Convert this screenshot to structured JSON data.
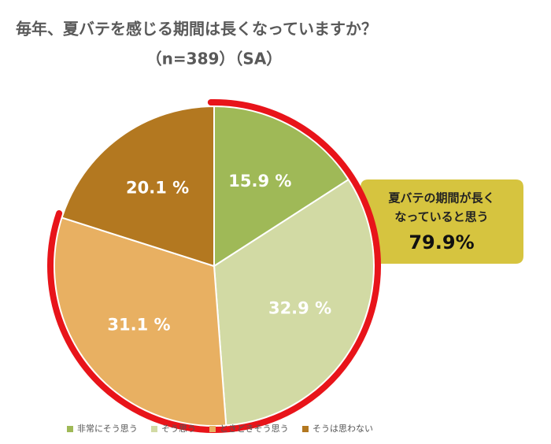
{
  "chart_data": {
    "type": "pie",
    "title": "毎年、夏バテを感じる期間は長くなっていますか？",
    "subtitle": "（n=389）（SA）",
    "categories": [
      "非常にそう思う",
      "そう思う",
      "ときどきそう思う",
      "そうは思わない"
    ],
    "values": [
      15.9,
      32.9,
      31.1,
      20.1
    ],
    "value_labels": [
      "15.9 %",
      "32.9 %",
      "31.1 %",
      "20.1 %"
    ],
    "colors": [
      "#9fb957",
      "#d2daa4",
      "#e8b062",
      "#b37820"
    ],
    "annotation": {
      "lines": [
        "夏バテの期間が長く",
        "なっていると思う"
      ],
      "value": "79.9%"
    },
    "legend": "bottom"
  }
}
